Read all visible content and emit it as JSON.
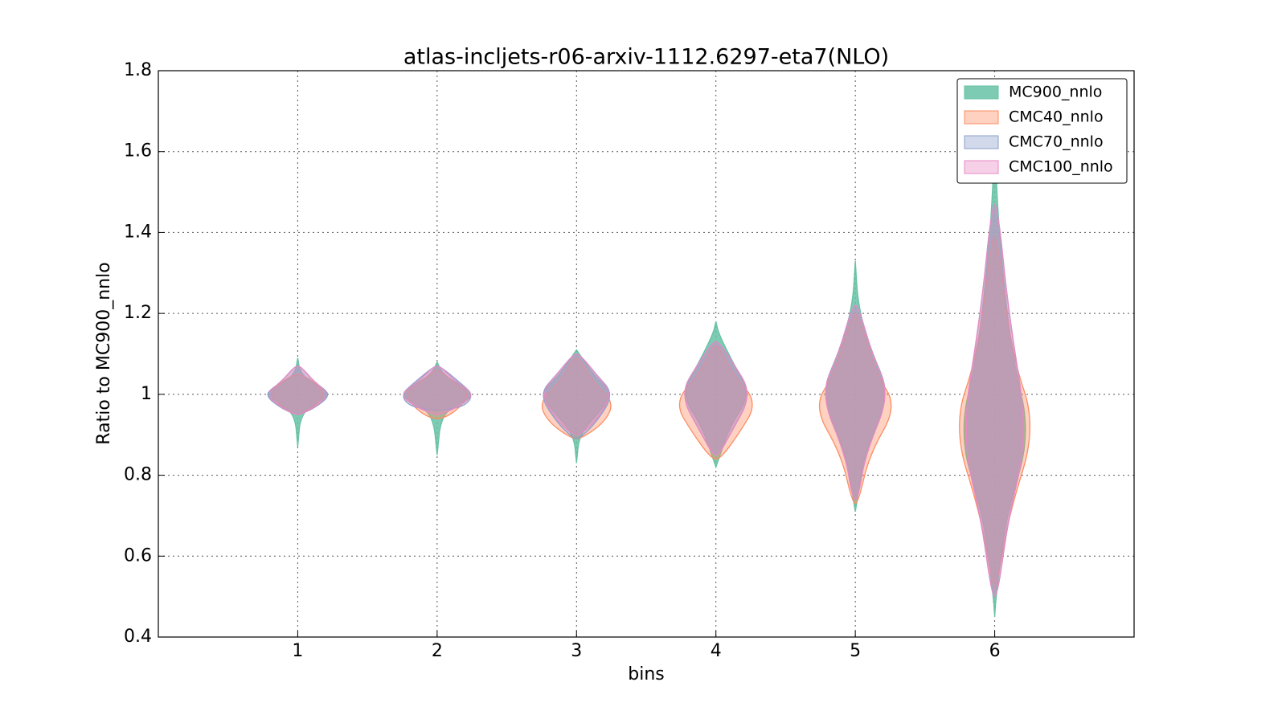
{
  "chart_data": {
    "type": "violin",
    "title": "atlas-incljets-r06-arxiv-1112.6297-eta7(NLO)",
    "xlabel": "bins",
    "ylabel": "Ratio to MC900_nnlo",
    "x": [
      1,
      2,
      3,
      4,
      5,
      6
    ],
    "xlim": [
      0,
      7
    ],
    "xticks": [
      1,
      2,
      3,
      4,
      5,
      6
    ],
    "ylim": [
      0.4,
      1.8
    ],
    "yticks": [
      0.4,
      0.6,
      0.8,
      1.0,
      1.2,
      1.4,
      1.6,
      1.8
    ],
    "grid": true,
    "legend": "upper right",
    "series": [
      {
        "name": "MC900_nnlo",
        "color": "#66c2a5",
        "values": [
          {
            "y": [
              0.87,
              0.95,
              0.98,
              1.0,
              1.02,
              1.05,
              1.09
            ],
            "w": [
              0,
              0.02,
              0.14,
              0.24,
              0.14,
              0.02,
              0
            ]
          },
          {
            "y": [
              0.85,
              0.95,
              0.98,
              1.0,
              1.02,
              1.05,
              1.08
            ],
            "w": [
              0,
              0.03,
              0.18,
              0.26,
              0.18,
              0.04,
              0
            ]
          },
          {
            "y": [
              0.83,
              0.9,
              0.95,
              1.0,
              1.05,
              1.1,
              1.11
            ],
            "w": [
              0,
              0.02,
              0.15,
              0.26,
              0.12,
              0.02,
              0
            ]
          },
          {
            "y": [
              0.82,
              0.85,
              0.92,
              1.0,
              1.08,
              1.15,
              1.18
            ],
            "w": [
              0,
              0.03,
              0.1,
              0.25,
              0.12,
              0.02,
              0
            ]
          },
          {
            "y": [
              0.71,
              0.75,
              0.85,
              1.0,
              1.12,
              1.22,
              1.33
            ],
            "w": [
              0,
              0.02,
              0.06,
              0.25,
              0.1,
              0.02,
              0
            ]
          },
          {
            "y": [
              0.45,
              0.5,
              0.7,
              0.9,
              1.1,
              1.4,
              1.62
            ],
            "w": [
              0,
              0.01,
              0.08,
              0.26,
              0.12,
              0.03,
              0
            ]
          }
        ]
      },
      {
        "name": "CMC40_nnlo",
        "color": "#fc8d62",
        "values": [
          {
            "y": [
              0.95,
              0.97,
              1.0,
              1.03,
              1.05
            ],
            "w": [
              0.02,
              0.12,
              0.2,
              0.12,
              0.02
            ]
          },
          {
            "y": [
              0.94,
              0.96,
              1.0,
              1.03,
              1.06
            ],
            "w": [
              0.04,
              0.14,
              0.24,
              0.12,
              0.02
            ]
          },
          {
            "y": [
              0.89,
              0.93,
              0.98,
              1.03,
              1.09
            ],
            "w": [
              0.03,
              0.2,
              0.27,
              0.12,
              0.02
            ]
          },
          {
            "y": [
              0.84,
              0.9,
              0.98,
              1.05,
              1.12
            ],
            "w": [
              0.03,
              0.16,
              0.3,
              0.12,
              0.02
            ]
          },
          {
            "y": [
              0.73,
              0.85,
              0.97,
              1.05,
              1.2
            ],
            "w": [
              0.02,
              0.1,
              0.3,
              0.15,
              0.02
            ]
          },
          {
            "y": [
              0.52,
              0.7,
              0.92,
              1.1,
              1.39
            ],
            "w": [
              0.01,
              0.1,
              0.3,
              0.12,
              0.02
            ]
          }
        ]
      },
      {
        "name": "CMC70_nnlo",
        "color": "#8da0cb",
        "values": [
          {
            "y": [
              0.95,
              0.97,
              1.0,
              1.03,
              1.07
            ],
            "w": [
              0.02,
              0.14,
              0.24,
              0.12,
              0.02
            ]
          },
          {
            "y": [
              0.96,
              0.97,
              1.0,
              1.03,
              1.07
            ],
            "w": [
              0.02,
              0.2,
              0.26,
              0.16,
              0.02
            ]
          },
          {
            "y": [
              0.89,
              0.93,
              1.0,
              1.05,
              1.1
            ],
            "w": [
              0.02,
              0.14,
              0.27,
              0.14,
              0.02
            ]
          },
          {
            "y": [
              0.85,
              0.9,
              1.0,
              1.08,
              1.13
            ],
            "w": [
              0.02,
              0.1,
              0.26,
              0.12,
              0.02
            ]
          },
          {
            "y": [
              0.74,
              0.85,
              1.0,
              1.1,
              1.22
            ],
            "w": [
              0.02,
              0.07,
              0.25,
              0.12,
              0.02
            ]
          },
          {
            "y": [
              0.5,
              0.7,
              0.9,
              1.2,
              1.47
            ],
            "w": [
              0.02,
              0.1,
              0.24,
              0.1,
              0.02
            ]
          }
        ]
      },
      {
        "name": "CMC100_nnlo",
        "color": "#e78ac3",
        "values": [
          {
            "y": [
              0.95,
              0.97,
              1.0,
              1.03,
              1.07
            ],
            "w": [
              0.02,
              0.13,
              0.23,
              0.12,
              0.02
            ]
          },
          {
            "y": [
              0.95,
              0.97,
              1.0,
              1.03,
              1.07
            ],
            "w": [
              0.02,
              0.16,
              0.27,
              0.14,
              0.02
            ]
          },
          {
            "y": [
              0.9,
              0.93,
              1.0,
              1.05,
              1.1
            ],
            "w": [
              0.02,
              0.13,
              0.26,
              0.14,
              0.02
            ]
          },
          {
            "y": [
              0.85,
              0.9,
              1.0,
              1.08,
              1.13
            ],
            "w": [
              0.02,
              0.1,
              0.26,
              0.12,
              0.02
            ]
          },
          {
            "y": [
              0.74,
              0.85,
              1.0,
              1.1,
              1.22
            ],
            "w": [
              0.02,
              0.07,
              0.25,
              0.12,
              0.02
            ]
          },
          {
            "y": [
              0.5,
              0.68,
              0.9,
              1.2,
              1.47
            ],
            "w": [
              0.02,
              0.09,
              0.24,
              0.1,
              0.02
            ]
          }
        ]
      }
    ]
  }
}
